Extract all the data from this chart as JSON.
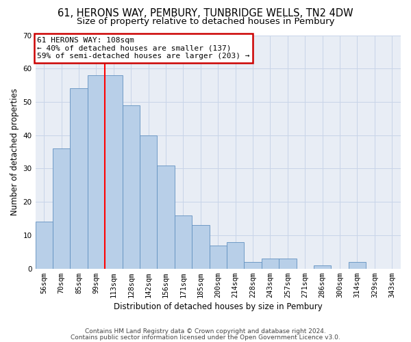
{
  "title": "61, HERONS WAY, PEMBURY, TUNBRIDGE WELLS, TN2 4DW",
  "subtitle": "Size of property relative to detached houses in Pembury",
  "xlabel": "Distribution of detached houses by size in Pembury",
  "ylabel": "Number of detached properties",
  "categories": [
    "56sqm",
    "70sqm",
    "85sqm",
    "99sqm",
    "113sqm",
    "128sqm",
    "142sqm",
    "156sqm",
    "171sqm",
    "185sqm",
    "200sqm",
    "214sqm",
    "228sqm",
    "243sqm",
    "257sqm",
    "271sqm",
    "286sqm",
    "300sqm",
    "314sqm",
    "329sqm",
    "343sqm"
  ],
  "values": [
    14,
    36,
    54,
    58,
    58,
    49,
    40,
    31,
    16,
    13,
    7,
    8,
    2,
    3,
    3,
    0,
    1,
    0,
    2,
    0,
    0
  ],
  "bar_color": "#b8cfe8",
  "bar_edge_color": "#6090c0",
  "red_line_x": 3.5,
  "annotation_text": "61 HERONS WAY: 108sqm\n← 40% of detached houses are smaller (137)\n59% of semi-detached houses are larger (203) →",
  "annotation_box_color": "#cc0000",
  "ylim": [
    0,
    70
  ],
  "yticks": [
    0,
    10,
    20,
    30,
    40,
    50,
    60,
    70
  ],
  "footer_line1": "Contains HM Land Registry data © Crown copyright and database right 2024.",
  "footer_line2": "Contains public sector information licensed under the Open Government Licence v3.0.",
  "bg_color": "#ffffff",
  "plot_bg_color": "#e8edf5",
  "grid_color": "#c8d4e8",
  "title_fontsize": 10.5,
  "subtitle_fontsize": 9.5,
  "tick_fontsize": 7.5,
  "ylabel_fontsize": 8.5,
  "xlabel_fontsize": 8.5,
  "annotation_fontsize": 8.0,
  "footer_fontsize": 6.5
}
